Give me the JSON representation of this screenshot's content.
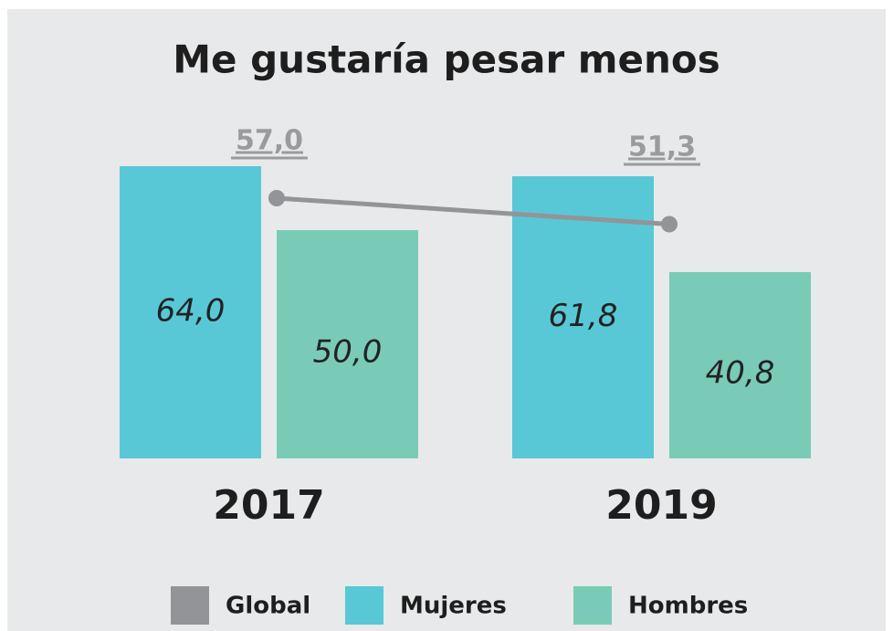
{
  "chart_data": {
    "type": "bar",
    "title": "Me gustaría pesar menos",
    "categories": [
      "2017",
      "2019"
    ],
    "series": [
      {
        "name": "Global",
        "type": "line",
        "color": "#929497",
        "values": [
          57.0,
          51.3
        ],
        "value_labels": [
          "57,0",
          "51,3"
        ]
      },
      {
        "name": "Mujeres",
        "type": "bar",
        "color": "#58c8d6",
        "values": [
          64.0,
          61.8
        ],
        "value_labels": [
          "64,0",
          "61,8"
        ]
      },
      {
        "name": "Hombres",
        "type": "bar",
        "color": "#79cbb8",
        "values": [
          50.0,
          40.8
        ],
        "value_labels": [
          "50,0",
          "40,8"
        ]
      }
    ]
  }
}
